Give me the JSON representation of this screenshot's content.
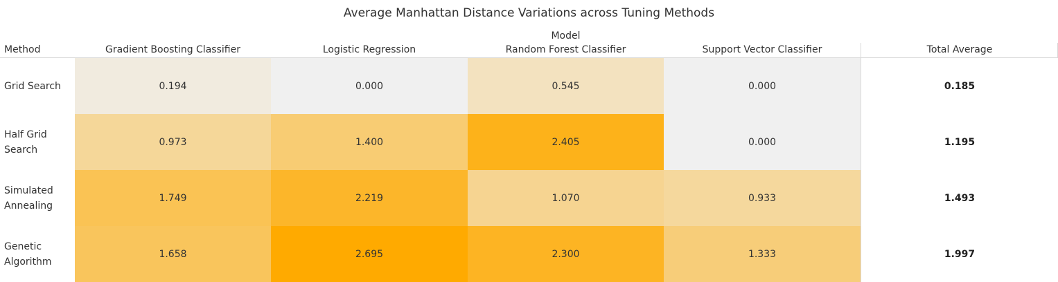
{
  "chart_data": {
    "type": "heatmap",
    "title": "Average Manhattan Distance Variations across Tuning Methods",
    "row_header": "Method",
    "column_group_header": "Model",
    "columns": [
      "Gradient Boosting Classifier",
      "Logistic Regression",
      "Random Forest Classifier",
      "Support Vector Classifier"
    ],
    "rows": [
      {
        "label": "Grid Search",
        "values": [
          "0.194",
          "0.000",
          "0.545",
          "0.000"
        ],
        "total": "0.185"
      },
      {
        "label": "Half Grid Search",
        "values": [
          "0.973",
          "1.400",
          "2.405",
          "0.000"
        ],
        "total": "1.195"
      },
      {
        "label": "Simulated Annealing",
        "values": [
          "1.749",
          "2.219",
          "1.070",
          "0.933"
        ],
        "total": "1.493"
      },
      {
        "label": "Genetic Algorithm",
        "values": [
          "1.658",
          "2.695",
          "2.300",
          "1.333"
        ],
        "total": "1.997"
      }
    ],
    "total_header": "Total Average",
    "color_scale": {
      "min": 0,
      "max": 2.695,
      "low_color": "#f0f0f0",
      "high_color": "#ffaa00"
    }
  }
}
